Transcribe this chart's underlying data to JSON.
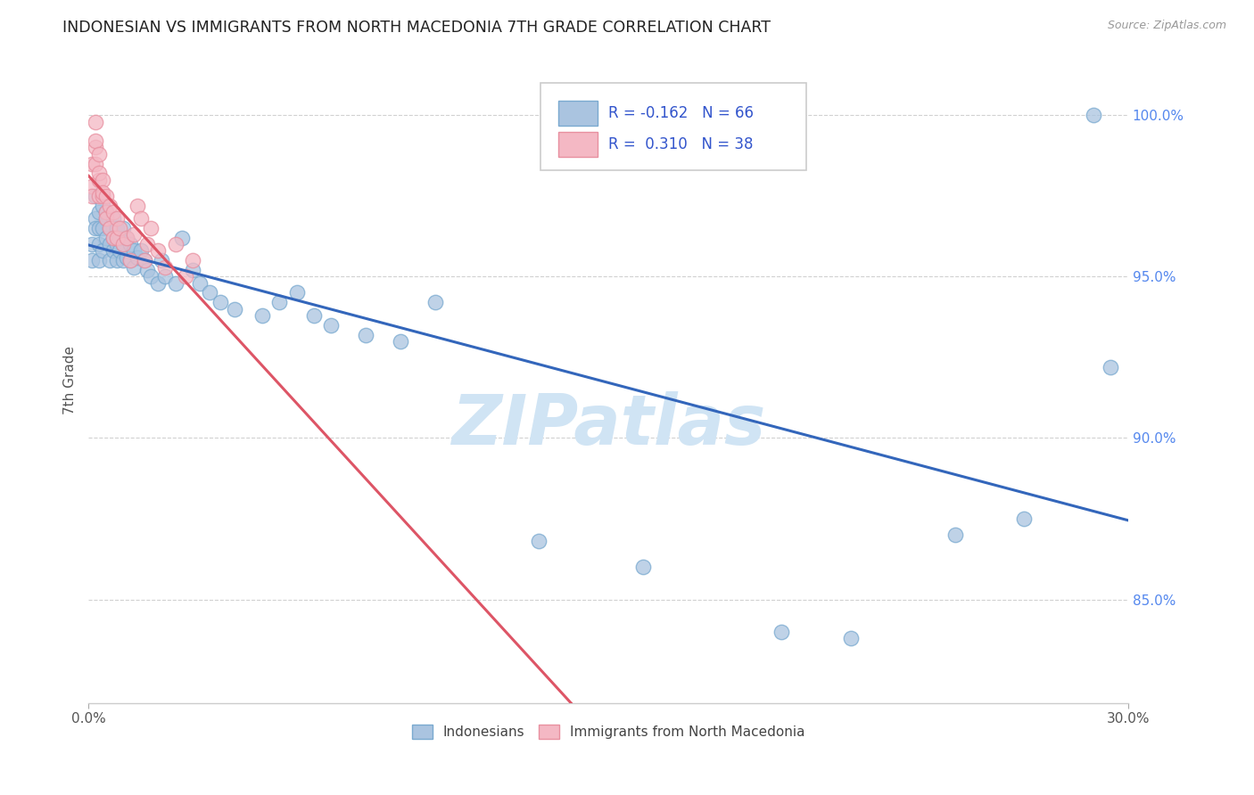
{
  "title": "INDONESIAN VS IMMIGRANTS FROM NORTH MACEDONIA 7TH GRADE CORRELATION CHART",
  "source": "Source: ZipAtlas.com",
  "ylabel": "7th Grade",
  "legend_label_blue": "Indonesians",
  "legend_label_pink": "Immigrants from North Macedonia",
  "r_blue": "-0.162",
  "n_blue": "66",
  "r_pink": "0.310",
  "n_pink": "38",
  "xmin": 0.0,
  "xmax": 0.3,
  "ymin": 0.818,
  "ymax": 1.018,
  "blue_color": "#aac4e0",
  "pink_color": "#f4b8c4",
  "blue_edge_color": "#7aaad0",
  "pink_edge_color": "#e890a0",
  "blue_line_color": "#3366bb",
  "pink_line_color": "#dd5566",
  "watermark_color": "#d0e4f4",
  "blue_x": [
    0.001,
    0.001,
    0.002,
    0.002,
    0.002,
    0.003,
    0.003,
    0.003,
    0.003,
    0.004,
    0.004,
    0.004,
    0.005,
    0.005,
    0.005,
    0.006,
    0.006,
    0.006,
    0.007,
    0.007,
    0.007,
    0.008,
    0.008,
    0.008,
    0.009,
    0.009,
    0.01,
    0.01,
    0.01,
    0.011,
    0.011,
    0.012,
    0.012,
    0.013,
    0.013,
    0.014,
    0.015,
    0.016,
    0.017,
    0.018,
    0.02,
    0.021,
    0.022,
    0.025,
    0.027,
    0.03,
    0.032,
    0.035,
    0.038,
    0.042,
    0.05,
    0.055,
    0.06,
    0.065,
    0.07,
    0.08,
    0.09,
    0.1,
    0.13,
    0.16,
    0.2,
    0.22,
    0.25,
    0.27,
    0.29,
    0.295
  ],
  "blue_y": [
    0.96,
    0.955,
    0.975,
    0.968,
    0.965,
    0.97,
    0.965,
    0.96,
    0.955,
    0.972,
    0.965,
    0.958,
    0.968,
    0.962,
    0.97,
    0.96,
    0.955,
    0.965,
    0.958,
    0.962,
    0.968,
    0.955,
    0.96,
    0.965,
    0.958,
    0.962,
    0.965,
    0.96,
    0.955,
    0.962,
    0.956,
    0.96,
    0.955,
    0.958,
    0.953,
    0.956,
    0.958,
    0.955,
    0.952,
    0.95,
    0.948,
    0.955,
    0.95,
    0.948,
    0.962,
    0.952,
    0.948,
    0.945,
    0.942,
    0.94,
    0.938,
    0.942,
    0.945,
    0.938,
    0.935,
    0.932,
    0.93,
    0.942,
    0.868,
    0.86,
    0.84,
    0.838,
    0.87,
    0.875,
    1.0,
    0.922
  ],
  "pink_x": [
    0.001,
    0.001,
    0.001,
    0.002,
    0.002,
    0.002,
    0.002,
    0.003,
    0.003,
    0.003,
    0.003,
    0.004,
    0.004,
    0.004,
    0.005,
    0.005,
    0.005,
    0.006,
    0.006,
    0.007,
    0.007,
    0.008,
    0.008,
    0.009,
    0.01,
    0.011,
    0.012,
    0.013,
    0.014,
    0.015,
    0.016,
    0.017,
    0.018,
    0.02,
    0.022,
    0.025,
    0.028,
    0.03
  ],
  "pink_y": [
    0.978,
    0.975,
    0.985,
    0.99,
    0.985,
    0.998,
    0.992,
    0.98,
    0.975,
    0.988,
    0.982,
    0.975,
    0.98,
    0.976,
    0.97,
    0.975,
    0.968,
    0.972,
    0.965,
    0.97,
    0.962,
    0.968,
    0.962,
    0.965,
    0.96,
    0.962,
    0.955,
    0.963,
    0.972,
    0.968,
    0.955,
    0.96,
    0.965,
    0.958,
    0.953,
    0.96,
    0.95,
    0.955
  ]
}
